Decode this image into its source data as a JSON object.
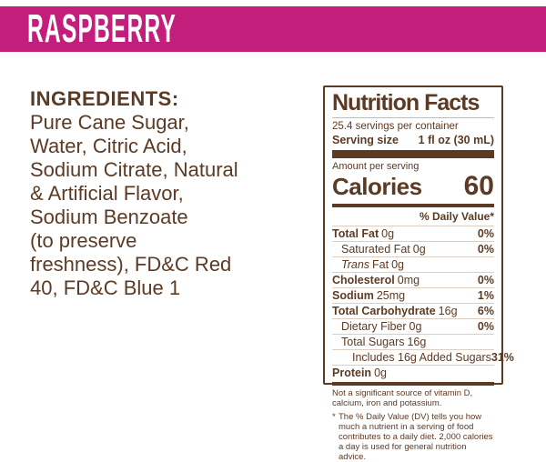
{
  "colors": {
    "banner_bg": "#c41e7d",
    "banner_text": "#ffffff",
    "body_text": "#5d3a23",
    "hairline": "#dccfc2"
  },
  "flavor_banner": {
    "title": "RASPBERRY"
  },
  "ingredients": {
    "heading": "INGREDIENTS:",
    "lines": [
      "Pure Cane Sugar,",
      "Water, Citric Acid,",
      "Sodium Citrate, Natural",
      "& Artificial Flavor,",
      "Sodium Benzoate",
      "(to preserve",
      "freshness), FD&C Red",
      "40, FD&C Blue 1"
    ]
  },
  "nutrition": {
    "title": "Nutrition Facts",
    "servings_per_container": "25.4 servings per container",
    "serving_size_label": "Serving size",
    "serving_size_value": "1 fl oz (30 mL)",
    "amount_per_serving": "Amount per serving",
    "calories_label": "Calories",
    "calories_value": "60",
    "daily_value_header": "% Daily Value*",
    "rows": [
      {
        "name": "Total Fat",
        "amount": "0g",
        "dv": "0%"
      },
      {
        "name": "Saturated Fat",
        "amount": "0g",
        "dv": "0%"
      },
      {
        "name_italic": "Trans",
        "name": "Fat",
        "amount": "0g",
        "dv": ""
      },
      {
        "name": "Cholesterol",
        "amount": "0mg",
        "dv": "0%"
      },
      {
        "name": "Sodium",
        "amount": "25mg",
        "dv": "1%"
      },
      {
        "name": "Total Carbohydrate",
        "amount": "16g",
        "dv": "6%"
      },
      {
        "name": "Dietary Fiber",
        "amount": "0g",
        "dv": "0%"
      },
      {
        "name": "Total Sugars",
        "amount": "16g",
        "dv": ""
      },
      {
        "name": "Includes 16g Added Sugars",
        "amount": "",
        "dv": "31%"
      },
      {
        "name": "Protein",
        "amount": "0g",
        "dv": ""
      }
    ],
    "footnote_not_significant": "Not a significant source of vitamin D, calcium, iron and potassium.",
    "footnote_asterisk": "*",
    "footnote_dv": "The % Daily Value (DV) tells you how much a nutrient in a serving of food contributes to a daily diet. 2,000 calories a day is used for general nutrition advice."
  }
}
